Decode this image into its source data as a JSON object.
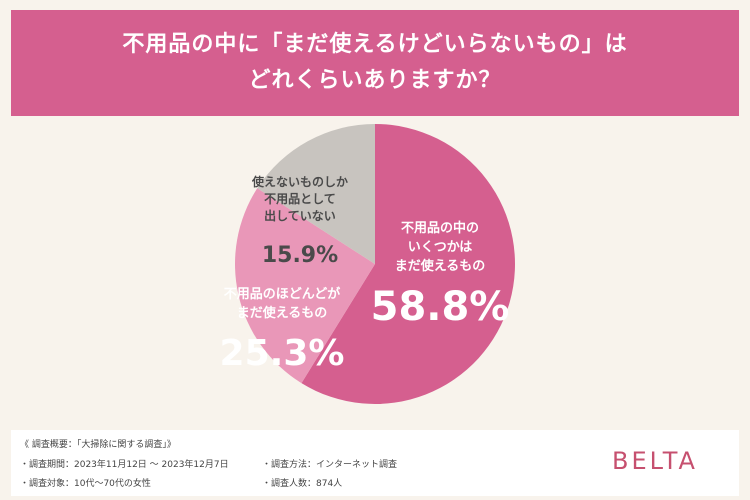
{
  "header": {
    "title_line1": "不用品の中に「まだ使えるけどいらないもの」は",
    "title_line2": "どれくらいありますか？"
  },
  "chart_data": {
    "type": "pie",
    "title": "不用品の中に「まだ使えるけどいらないもの」はどれくらいありますか？",
    "slices": [
      {
        "label_lines": [
          "不用品の中の",
          "いくつかは",
          "まだ使えるもの"
        ],
        "value": 58.8,
        "value_text": "58.8%",
        "color": "#d55f8f"
      },
      {
        "label_lines": [
          "不用品のほどんどが",
          "まだ使えるもの"
        ],
        "value": 25.3,
        "value_text": "25.3%",
        "color": "#e997b8"
      },
      {
        "label_lines": [
          "使えないものしか",
          "不用品として",
          "出していない"
        ],
        "value": 15.9,
        "value_text": "15.9%",
        "color": "#c8c4bf"
      }
    ]
  },
  "footer": {
    "survey_name": "《 調査概要：「大掃除に関する調査」》",
    "period": "・調査期間：2023年11月12日 ～ 2023年12月7日",
    "target": "・調査対象：10代～70代の女性",
    "method": "・調査方法：インターネット調査",
    "count": "・調査人数：874人",
    "brand": "BELTA"
  }
}
